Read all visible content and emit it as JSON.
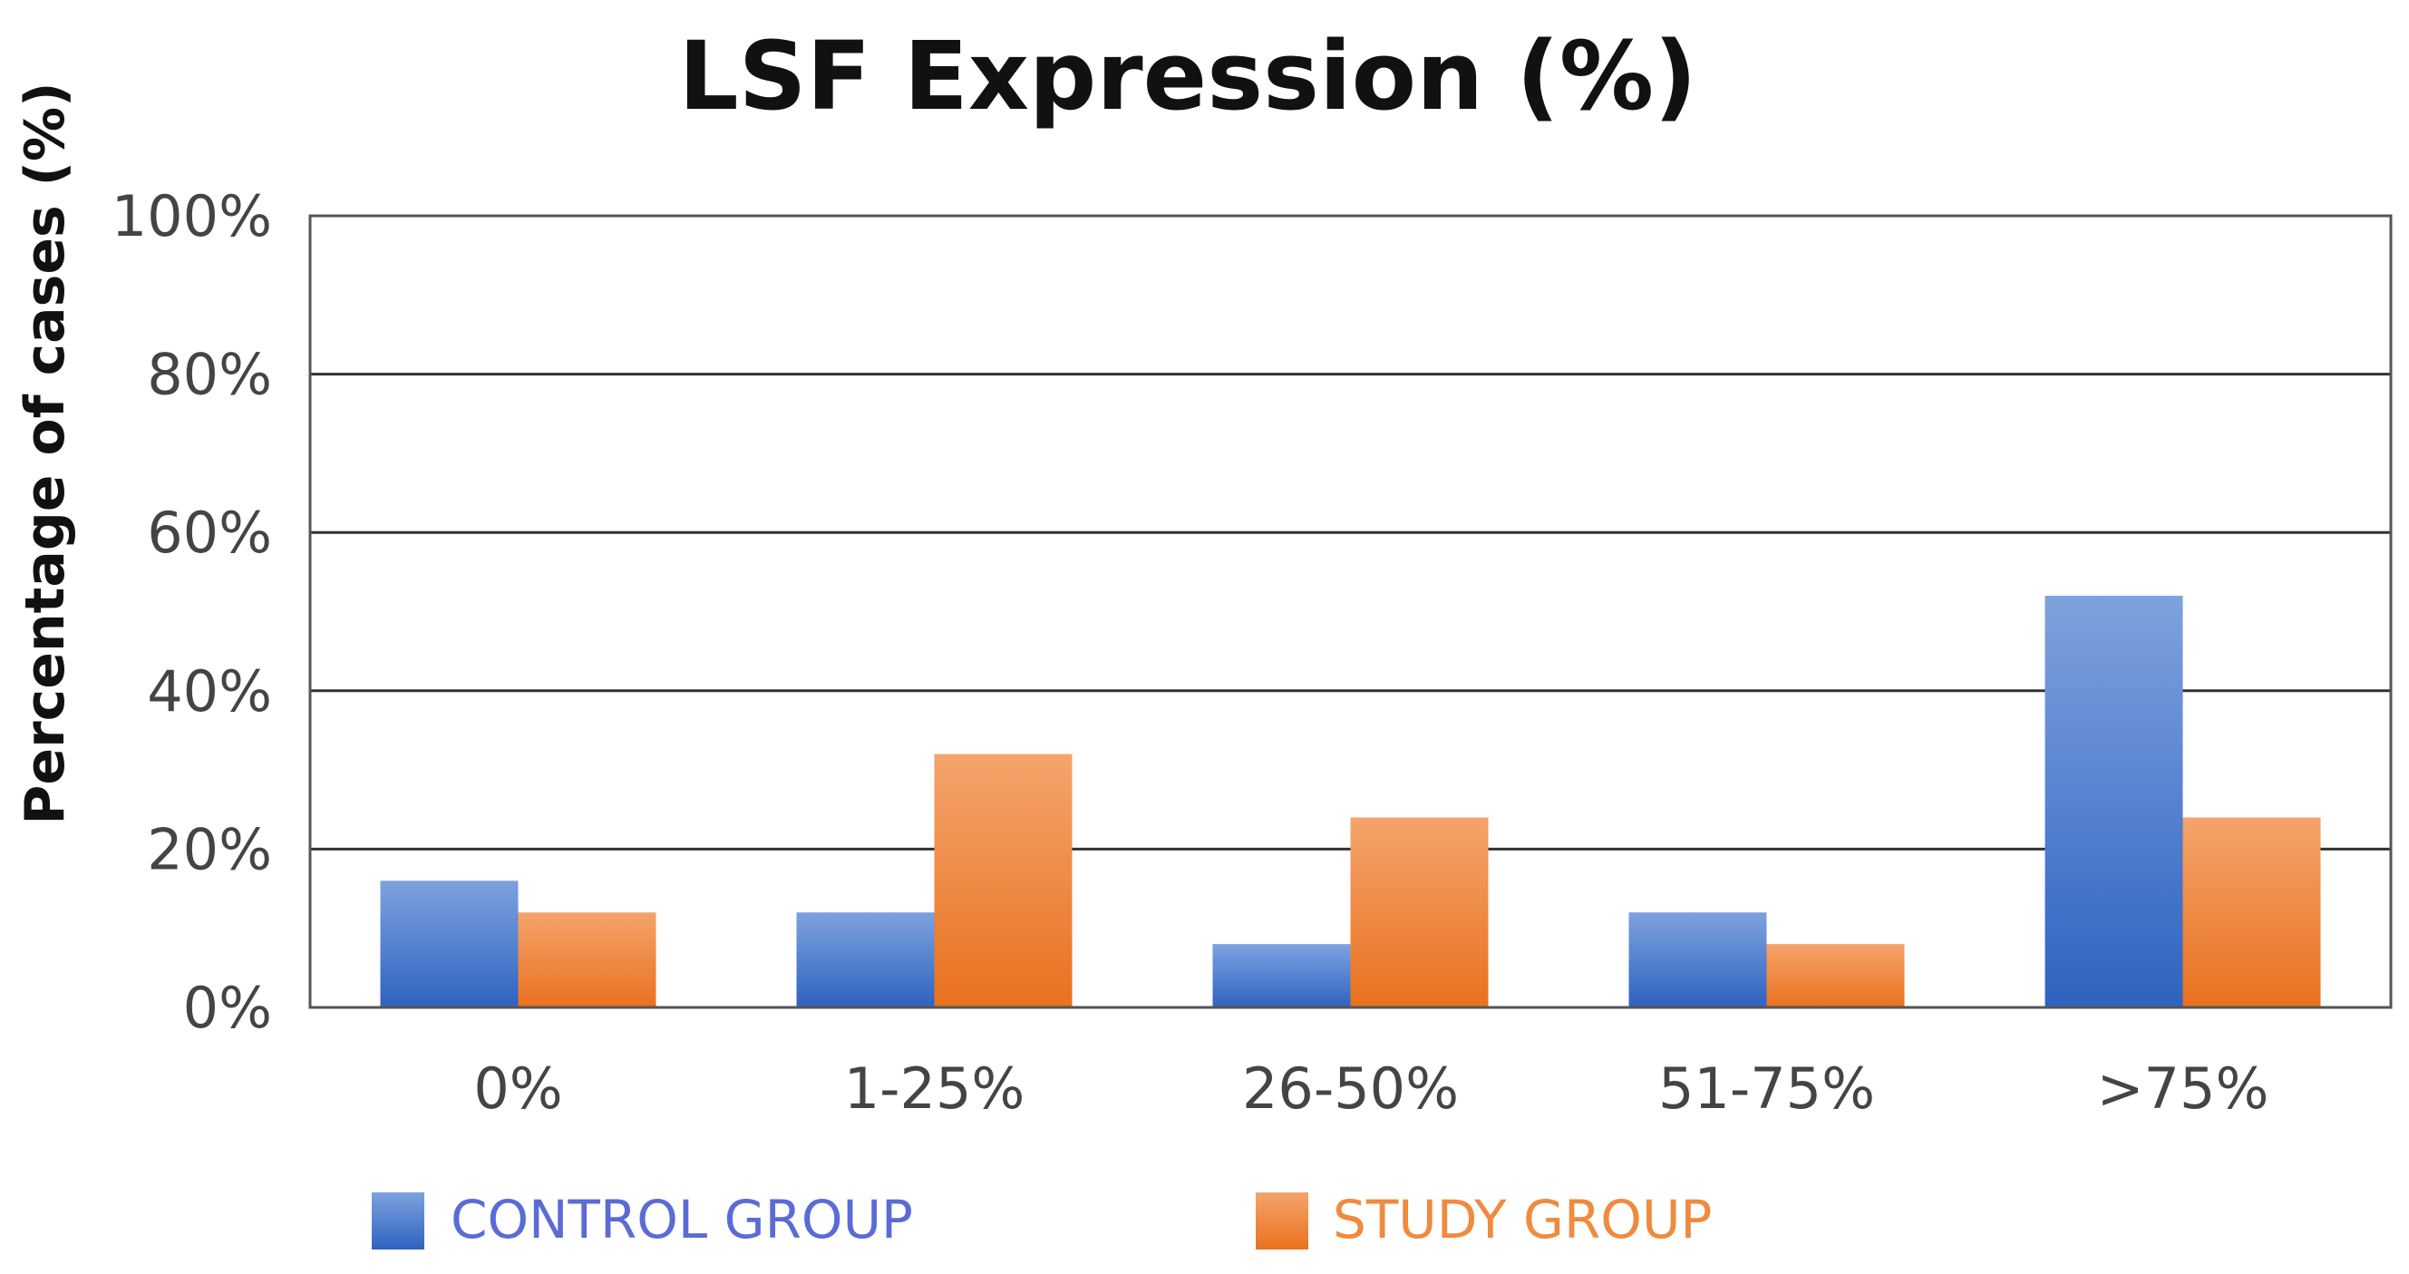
{
  "chart_data": {
    "type": "bar",
    "title": "LSF Expression (%)",
    "xlabel": "",
    "ylabel": "Percentage of cases (%)",
    "categories": [
      "0%",
      "1-25%",
      "26-50%",
      "51-75%",
      ">75%"
    ],
    "series": [
      {
        "name": "CONTROL GROUP",
        "values": [
          16,
          12,
          8,
          12,
          52
        ],
        "color": "#4472C4"
      },
      {
        "name": "STUDY GROUP",
        "values": [
          12,
          32,
          24,
          8,
          24
        ],
        "color": "#ED7D31"
      }
    ],
    "ylim": [
      0,
      100
    ],
    "yticks": [
      "0%",
      "20%",
      "40%",
      "60%",
      "80%",
      "100%"
    ],
    "ytick_values": [
      0,
      20,
      40,
      60,
      80,
      100
    ],
    "grid": true,
    "legend_position": "bottom",
    "colors": {
      "control_light": "#7EA2DE",
      "control_dark": "#2F62C0",
      "study_light": "#F4A46C",
      "study_dark": "#E9711E",
      "control_text": "#5B6BD6",
      "study_text": "#F08A3E",
      "axis": "#555555",
      "grid": "#333333",
      "tick_text": "#444444",
      "title": "#111111"
    }
  }
}
